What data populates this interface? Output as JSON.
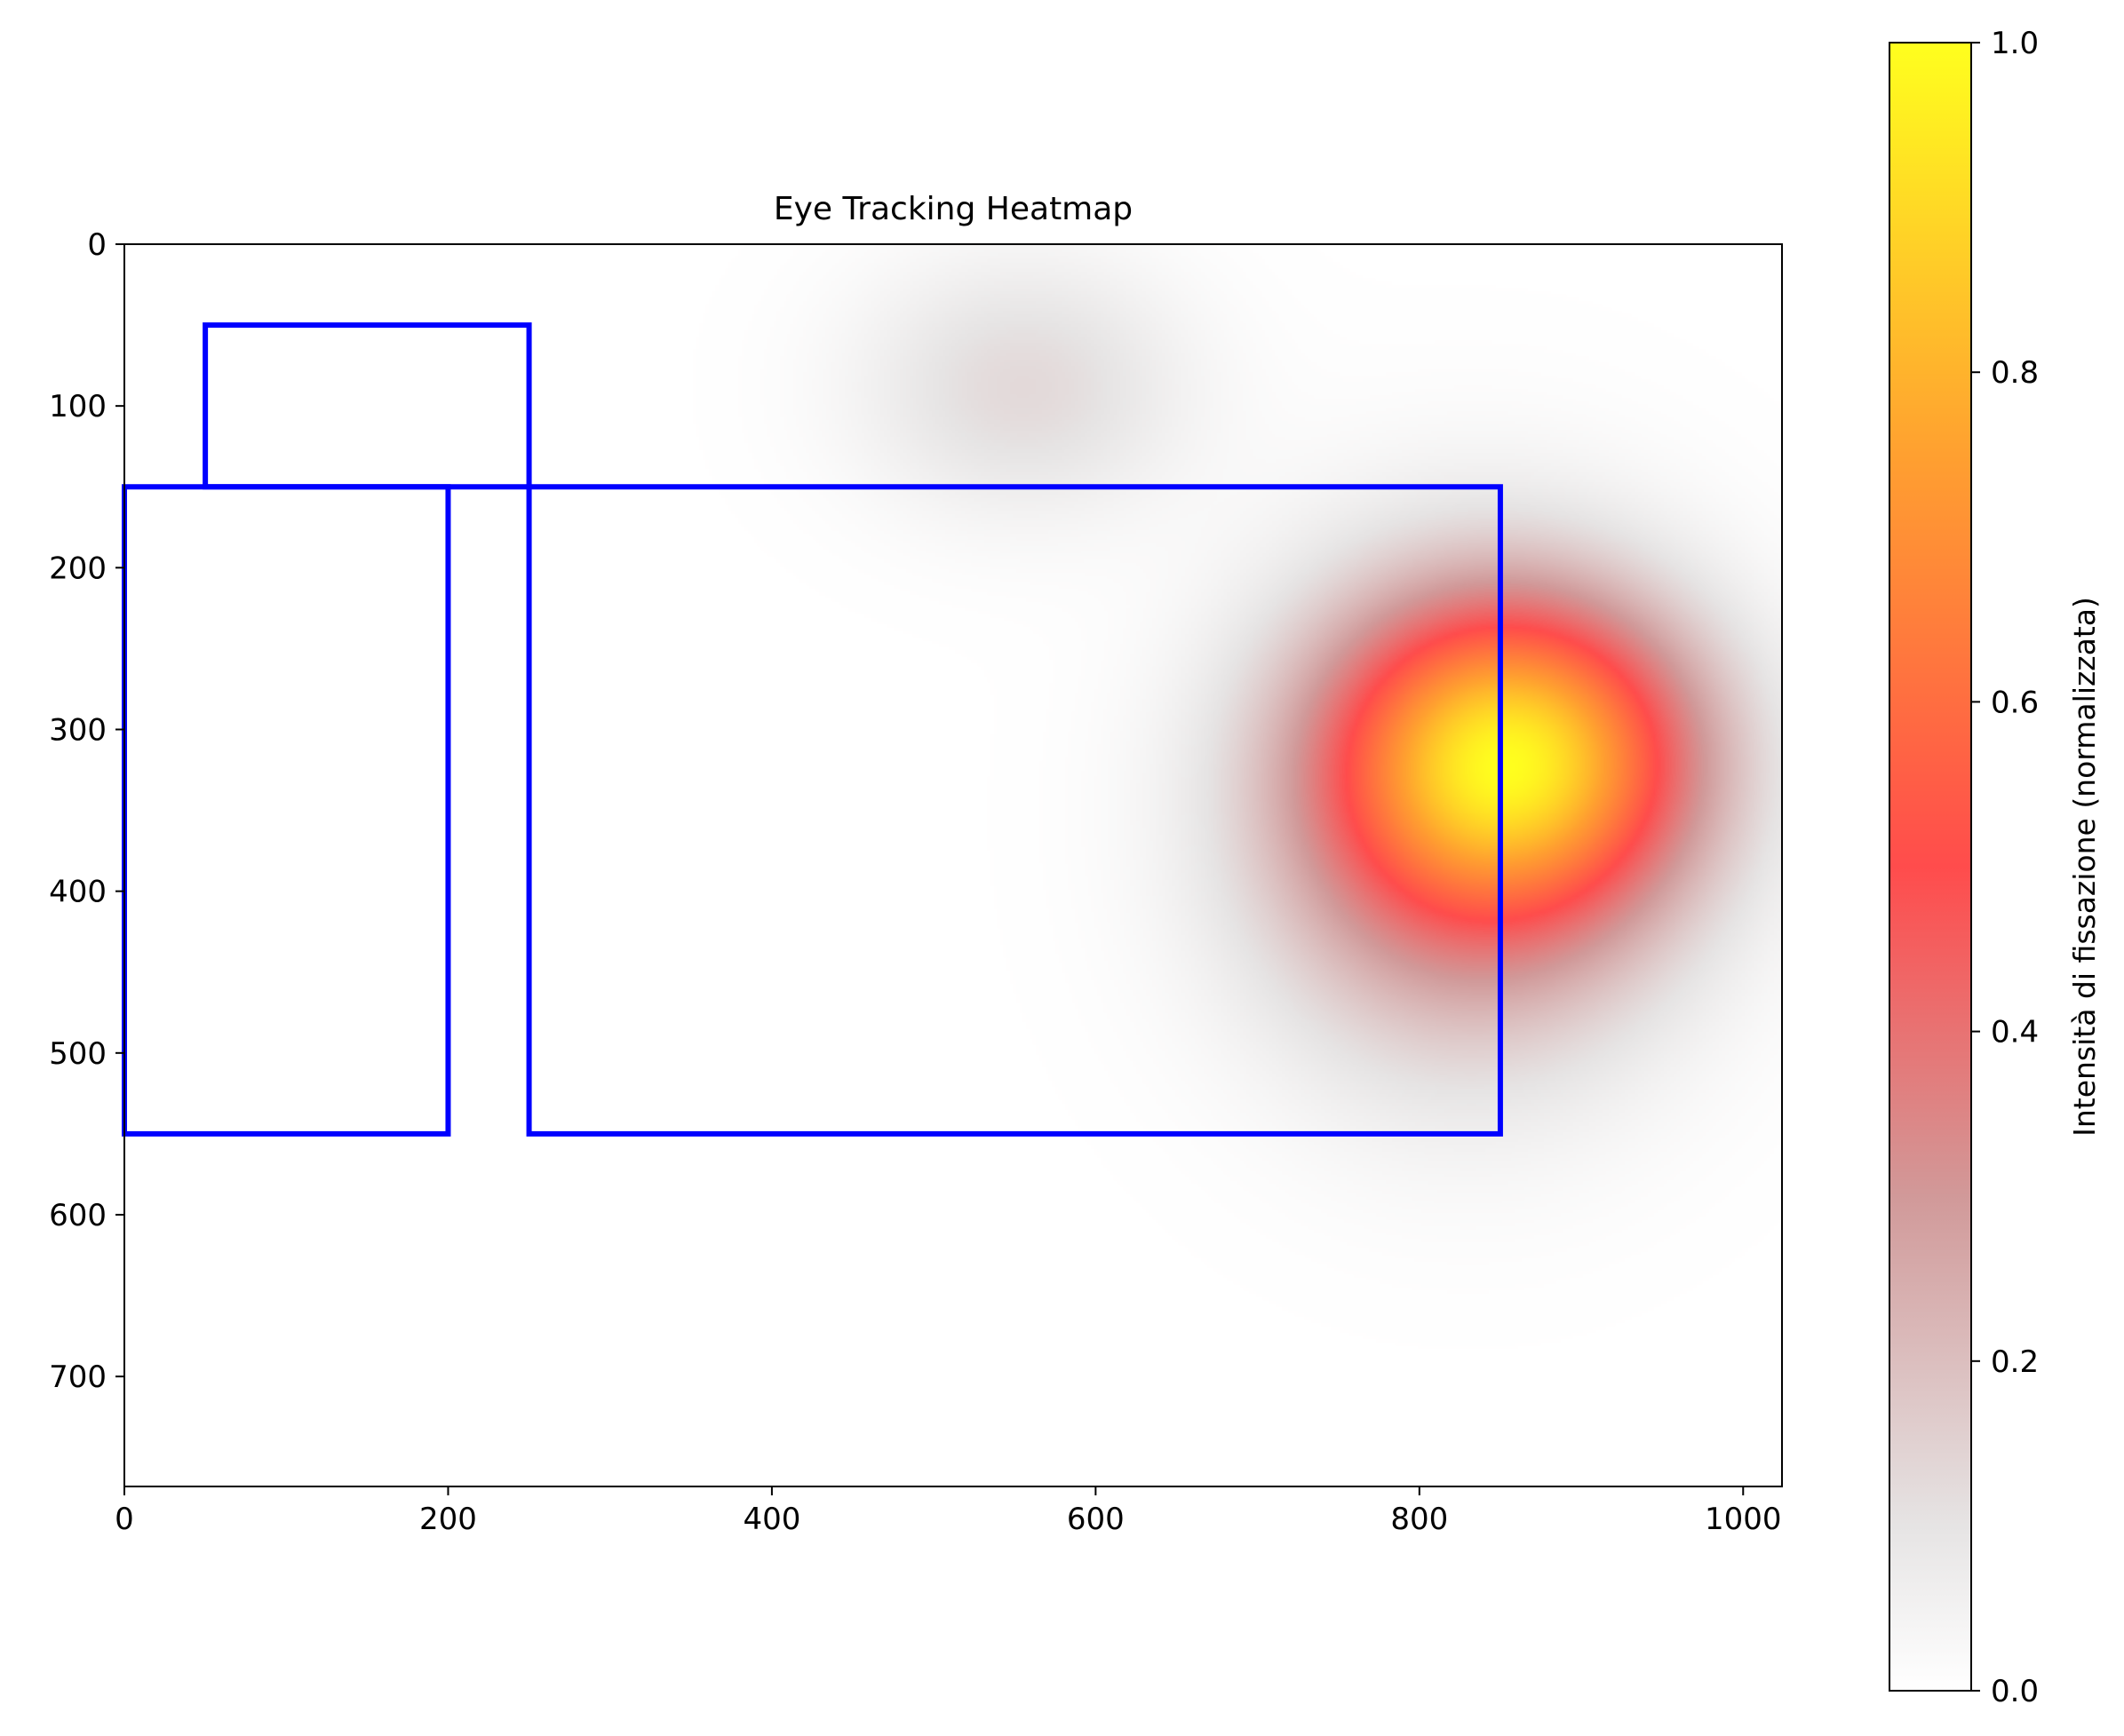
{
  "chart_data": {
    "type": "heatmap",
    "title": "Eye Tracking Heatmap",
    "xlabel": "",
    "ylabel": "",
    "xlim": [
      0,
      1024
    ],
    "ylim": [
      768,
      0
    ],
    "x_ticks": [
      0,
      200,
      400,
      600,
      800,
      1000
    ],
    "y_ticks": [
      0,
      100,
      200,
      300,
      400,
      500,
      600,
      700
    ],
    "hotspots": [
      {
        "x": 862,
        "y": 315,
        "intensity": 1.0,
        "sx": 75,
        "sy": 65
      },
      {
        "x": 830,
        "y": 355,
        "intensity": 0.62,
        "sx": 90,
        "sy": 100
      },
      {
        "x": 555,
        "y": 88,
        "intensity": 0.2,
        "sx": 70,
        "sy": 55
      }
    ],
    "regions": [
      {
        "x0": 50,
        "y0": 50,
        "x1": 250,
        "y1": 150
      },
      {
        "x0": 0,
        "y0": 150,
        "x1": 200,
        "y1": 550
      },
      {
        "x0": 250,
        "y0": 150,
        "x1": 850,
        "y1": 550
      }
    ],
    "region_color": "#0000ff",
    "colorbar": {
      "label": "Intensità di fissazione (normalizzata)",
      "range": [
        0,
        1
      ],
      "ticks": [
        "0.0",
        "0.2",
        "0.4",
        "0.6",
        "0.8",
        "1.0"
      ],
      "stops": [
        {
          "v": 0.0,
          "color": "#ffffff"
        },
        {
          "v": 0.1,
          "color": "#e6e4e4"
        },
        {
          "v": 0.3,
          "color": "#d19999"
        },
        {
          "v": 0.5,
          "color": "#ff4c4c"
        },
        {
          "v": 0.75,
          "color": "#ffa030"
        },
        {
          "v": 1.0,
          "color": "#ffff1e"
        }
      ]
    }
  }
}
